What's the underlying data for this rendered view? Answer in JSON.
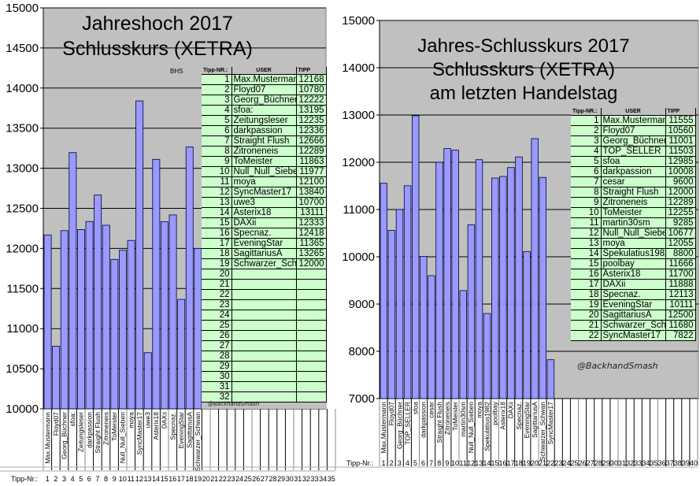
{
  "chart_data": [
    {
      "type": "bar",
      "title": "Jahreshoch 2017 Schlusskurs (XETRA)",
      "title_lines": [
        "Jahreshoch 2017",
        "Schlusskurs (XETRA)"
      ],
      "annotation": "BHS",
      "credit": "@BackhandSmash",
      "xlabel": "Tipp-Nr.:",
      "ylim": [
        10000,
        15000
      ],
      "yticks": [
        10000,
        10500,
        11000,
        11500,
        12000,
        12500,
        13000,
        13500,
        14000,
        14500,
        15000
      ],
      "grid": true,
      "bar_color": "#9999ff",
      "plot_bg": "#c0c0c0",
      "table_bg": "#ccffcc",
      "tipp_numbers": [
        1,
        2,
        3,
        4,
        5,
        6,
        7,
        8,
        9,
        10,
        11,
        12,
        13,
        14,
        15,
        16,
        17,
        18,
        19,
        20,
        21,
        22,
        23,
        24,
        25,
        26,
        27,
        28,
        29,
        30,
        31,
        32,
        33,
        34,
        35
      ],
      "categories": [
        "Max.Mustermann",
        "Floyd07",
        "Georg_Büchner",
        "sfoa:",
        "Zeitungsleser",
        "darkpassion",
        "Straight Flush",
        "Zitroneneis",
        "ToMeister",
        "Null_Null_Sieben",
        "moya",
        "SyncMaster17",
        "uwe3",
        "Asterix18",
        "DAXii",
        "Specnaz.",
        "EveningStar",
        "SagittariusA",
        "Schwarzer_Schwan"
      ],
      "values": [
        12168,
        10780,
        12222,
        13195,
        12235,
        12336,
        12666,
        12289,
        11863,
        11977,
        12100,
        13840,
        10700,
        13111,
        12333,
        12418,
        11365,
        13265,
        12000
      ],
      "table": {
        "headers": [
          "Tipp-NR.:",
          "USER",
          "TIPP"
        ],
        "rows": [
          [
            "1",
            "Max.Mustermann",
            "12168"
          ],
          [
            "2",
            "Floyd07",
            "10780"
          ],
          [
            "3",
            "Georg_Büchner",
            "12222"
          ],
          [
            "4",
            "sfoa:",
            "13195"
          ],
          [
            "5",
            "Zeitungsleser",
            "12235"
          ],
          [
            "6",
            "darkpassion",
            "12336"
          ],
          [
            "7",
            "Straight Flush",
            "12666"
          ],
          [
            "8",
            "Zitroneneis",
            "12289"
          ],
          [
            "9",
            "ToMeister",
            "11863"
          ],
          [
            "10",
            "Null_Null_Sieben",
            "11977"
          ],
          [
            "11",
            "moya",
            "12100"
          ],
          [
            "12",
            "SyncMaster17",
            "13840"
          ],
          [
            "13",
            "uwe3",
            "10700"
          ],
          [
            "14",
            "Asterix18",
            "13111"
          ],
          [
            "15",
            "DAXii",
            "12333"
          ],
          [
            "16",
            "Specnaz.",
            "12418"
          ],
          [
            "17",
            "EveningStar",
            "11365"
          ],
          [
            "18",
            "SagittariusA",
            "13265"
          ],
          [
            "19",
            "Schwarzer_Schwa",
            "12000"
          ],
          [
            "20",
            "",
            ""
          ],
          [
            "21",
            "",
            ""
          ],
          [
            "22",
            "",
            ""
          ],
          [
            "23",
            "",
            ""
          ],
          [
            "24",
            "",
            ""
          ],
          [
            "25",
            "",
            ""
          ],
          [
            "26",
            "",
            ""
          ],
          [
            "27",
            "",
            ""
          ],
          [
            "28",
            "",
            ""
          ],
          [
            "29",
            "",
            ""
          ],
          [
            "30",
            "",
            ""
          ],
          [
            "31",
            "",
            ""
          ],
          [
            "32",
            "",
            ""
          ]
        ]
      }
    },
    {
      "type": "bar",
      "title": "Jahres-Schlusskurs 2017 Schlusskurs (XETRA) am letzten Handelstag",
      "title_lines": [
        "Jahres-Schlusskurs 2017",
        "Schlusskurs (XETRA)",
        "am letzten Handelstag"
      ],
      "credit": "@BackhandSmash",
      "xlabel": "Tipp-Nr.:",
      "ylim": [
        7000,
        15000
      ],
      "yticks": [
        7000,
        8000,
        9000,
        10000,
        11000,
        12000,
        13000,
        14000,
        15000
      ],
      "grid": true,
      "bar_color": "#9999ff",
      "plot_bg": "#c0c0c0",
      "table_bg": "#ccffcc",
      "tipp_numbers": [
        1,
        2,
        3,
        4,
        5,
        6,
        7,
        8,
        9,
        10,
        11,
        12,
        13,
        14,
        15,
        16,
        17,
        18,
        19,
        20,
        21,
        22,
        23,
        24,
        25,
        26,
        27,
        28,
        29,
        30,
        31,
        32,
        33,
        34,
        35,
        36,
        37,
        38,
        39,
        40
      ],
      "categories": [
        "Max.Mustermann",
        "Floyd07",
        "Georg_Büchner",
        "TOP_SELLER",
        "sfoa",
        "darkpassion",
        "cesar",
        "Straight Flush",
        "Zitroneneis",
        "ToMeister",
        "martin30sm",
        "Null_Null_Sieben",
        "moya",
        "Spekulatius1982",
        "poolbay",
        "Asterix18",
        "DAXii",
        "Specnaz.",
        "EveningStar",
        "SagittariusA",
        "Schwarzer_Schwan",
        "SyncMaster17"
      ],
      "values": [
        11555,
        10560,
        11001,
        11503,
        12985,
        10008,
        9600,
        12000,
        12289,
        12255,
        9285,
        10677,
        12055,
        8800,
        11666,
        11700,
        11888,
        12113,
        10111,
        12500,
        11680,
        7822
      ],
      "table": {
        "headers": [
          "Tipp-NR.:",
          "USER",
          "TIPP"
        ],
        "rows": [
          [
            "1",
            "Max.Mustermann",
            "11555"
          ],
          [
            "2",
            "Floyd07",
            "10560"
          ],
          [
            "3",
            "Georg_Büchner",
            "11001"
          ],
          [
            "4",
            "TOP_SELLER",
            "11503"
          ],
          [
            "5",
            "sfoa",
            "12985"
          ],
          [
            "6",
            "darkpassion",
            "10008"
          ],
          [
            "7",
            "cesar",
            "9600"
          ],
          [
            "8",
            "Straight Flush",
            "12000"
          ],
          [
            "9",
            "Zitroneneis",
            "12289"
          ],
          [
            "10",
            "ToMeister",
            "12255"
          ],
          [
            "11",
            "martin30sm",
            "9285"
          ],
          [
            "12",
            "Null_Null_Sieben",
            "10677"
          ],
          [
            "13",
            "moya",
            "12055"
          ],
          [
            "14",
            "Spekulatius1982",
            "8800"
          ],
          [
            "15",
            "poolbay",
            "11666"
          ],
          [
            "16",
            "Asterix18",
            "11700"
          ],
          [
            "17",
            "DAXii",
            "11888"
          ],
          [
            "18",
            "Specnaz.",
            "12113"
          ],
          [
            "19",
            "EveningStar",
            "10111"
          ],
          [
            "20",
            "SagittariusA",
            "12500"
          ],
          [
            "21",
            "Schwarzer_Schwa",
            "11680"
          ],
          [
            "22",
            "SyncMaster17",
            "7822"
          ]
        ]
      }
    }
  ]
}
